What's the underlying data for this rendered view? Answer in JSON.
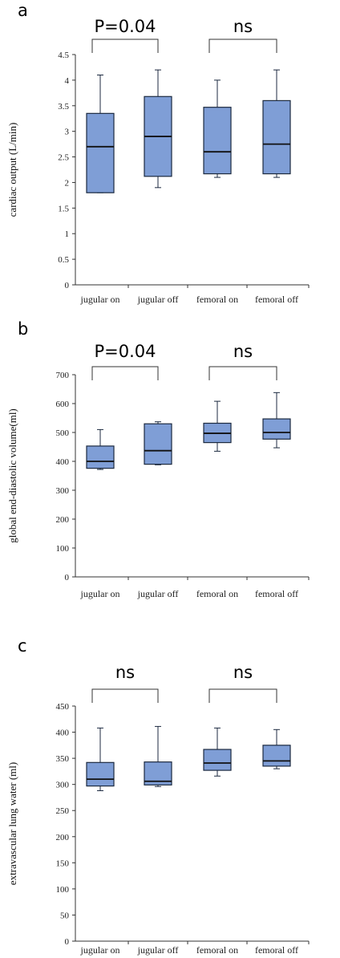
{
  "chart_data": [
    {
      "type": "box",
      "panel_label": "a",
      "ylabel": "cardiac output (L/min)",
      "categories": [
        "jugular on",
        "jugular off",
        "femoral on",
        "femoral off"
      ],
      "yticks": [
        "0",
        "0.5",
        "1",
        "1.5",
        "2",
        "2.5",
        "3",
        "3.5",
        "4",
        "4.5"
      ],
      "ylim": [
        0,
        4.5
      ],
      "boxes": [
        {
          "min": 1.8,
          "q1": 1.8,
          "median": 2.7,
          "q3": 3.35,
          "max": 4.1
        },
        {
          "min": 1.9,
          "q1": 2.12,
          "median": 2.9,
          "q3": 3.68,
          "max": 4.2
        },
        {
          "min": 2.1,
          "q1": 2.17,
          "median": 2.6,
          "q3": 3.47,
          "max": 4.0
        },
        {
          "min": 2.1,
          "q1": 2.17,
          "median": 2.75,
          "q3": 3.6,
          "max": 4.2
        }
      ],
      "comparisons": [
        {
          "from": 0,
          "to": 1,
          "label": "P=0.04"
        },
        {
          "from": 2,
          "to": 3,
          "label": "ns"
        }
      ]
    },
    {
      "type": "box",
      "panel_label": "b",
      "ylabel": "global end-diastolic volume(ml)",
      "categories": [
        "jugular on",
        "jugular off",
        "femoral on",
        "femoral off"
      ],
      "yticks": [
        "0",
        "100",
        "200",
        "300",
        "400",
        "500",
        "600",
        "700"
      ],
      "ylim": [
        0,
        700
      ],
      "boxes": [
        {
          "min": 372,
          "q1": 376,
          "median": 400,
          "q3": 453,
          "max": 510
        },
        {
          "min": 388,
          "q1": 390,
          "median": 437,
          "q3": 530,
          "max": 537
        },
        {
          "min": 435,
          "q1": 465,
          "median": 497,
          "q3": 532,
          "max": 608
        },
        {
          "min": 447,
          "q1": 477,
          "median": 500,
          "q3": 547,
          "max": 638
        }
      ],
      "comparisons": [
        {
          "from": 0,
          "to": 1,
          "label": "P=0.04"
        },
        {
          "from": 2,
          "to": 3,
          "label": "ns"
        }
      ]
    },
    {
      "type": "box",
      "panel_label": "c",
      "ylabel": "extravascular lung water (ml)",
      "categories": [
        "jugular on",
        "jugular off",
        "femoral on",
        "femoral off"
      ],
      "yticks": [
        "0",
        "50",
        "100",
        "150",
        "200",
        "250",
        "300",
        "350",
        "400",
        "450"
      ],
      "ylim": [
        0,
        450
      ],
      "boxes": [
        {
          "min": 288,
          "q1": 297,
          "median": 310,
          "q3": 342,
          "max": 408
        },
        {
          "min": 296,
          "q1": 299,
          "median": 306,
          "q3": 343,
          "max": 411
        },
        {
          "min": 316,
          "q1": 327,
          "median": 341,
          "q3": 367,
          "max": 408
        },
        {
          "min": 330,
          "q1": 335,
          "median": 345,
          "q3": 375,
          "max": 405
        }
      ],
      "comparisons": [
        {
          "from": 0,
          "to": 1,
          "label": "ns"
        },
        {
          "from": 2,
          "to": 3,
          "label": "ns"
        }
      ]
    }
  ],
  "colors": {
    "box_fill": "#7f9ed6",
    "box_stroke": "#1c2a40",
    "axis": "#333333"
  }
}
